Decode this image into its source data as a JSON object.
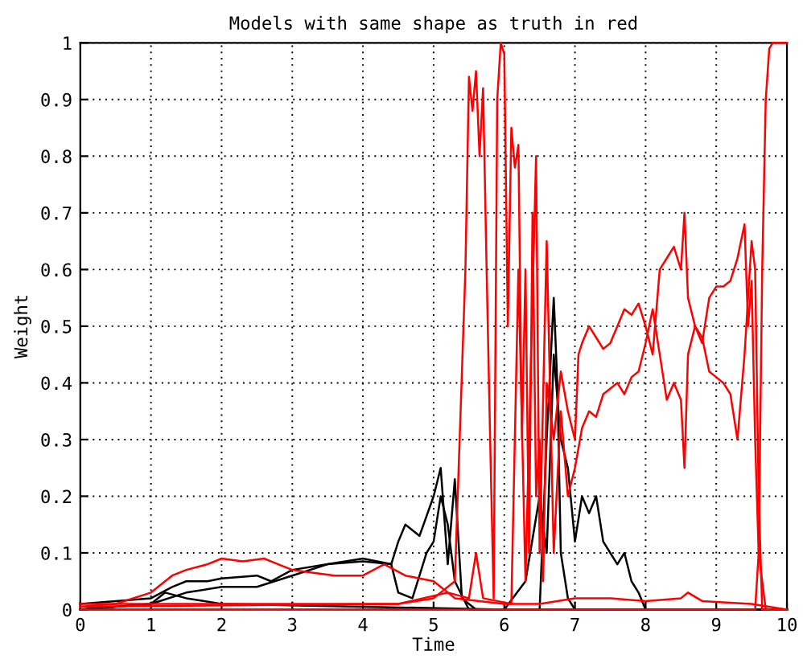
{
  "chart_data": {
    "type": "line",
    "title": "Models with same shape as truth in red",
    "xlabel": "Time",
    "ylabel": "Weight",
    "xlim": [
      0,
      10
    ],
    "ylim": [
      0,
      1
    ],
    "xticks": [
      0,
      1,
      2,
      3,
      4,
      5,
      6,
      7,
      8,
      9,
      10
    ],
    "yticks": [
      0,
      0.1,
      0.2,
      0.3,
      0.4,
      0.5,
      0.6,
      0.7,
      0.8,
      0.9,
      1
    ],
    "grid": true,
    "series": [
      {
        "color": "#000000",
        "x": [
          0,
          0.5,
          1.0,
          1.3,
          1.5,
          1.8,
          2.0,
          2.5,
          2.7,
          3.0,
          3.5,
          4.0,
          4.4,
          4.5,
          4.6,
          4.8,
          5.0,
          5.1,
          5.2,
          5.3,
          5.4,
          5.6,
          10
        ],
        "values": [
          0.01,
          0.015,
          0.02,
          0.04,
          0.05,
          0.05,
          0.055,
          0.06,
          0.05,
          0.07,
          0.08,
          0.09,
          0.08,
          0.12,
          0.15,
          0.13,
          0.2,
          0.25,
          0.08,
          0.23,
          0.02,
          0.0,
          0.0
        ]
      },
      {
        "color": "#000000",
        "x": [
          0,
          1.0,
          1.5,
          2.0,
          2.5,
          3.0,
          3.5,
          4.0,
          4.4,
          4.5,
          4.7,
          4.9,
          5.0,
          5.1,
          5.2,
          5.3,
          5.5,
          6.5,
          6.6,
          6.7,
          6.75,
          6.8,
          6.9,
          7.0,
          10
        ],
        "values": [
          0.0,
          0.01,
          0.03,
          0.04,
          0.04,
          0.06,
          0.08,
          0.085,
          0.08,
          0.03,
          0.02,
          0.1,
          0.12,
          0.2,
          0.15,
          0.05,
          0.0,
          0.0,
          0.3,
          0.55,
          0.4,
          0.1,
          0.02,
          0.0,
          0.0
        ]
      },
      {
        "color": "#000000",
        "x": [
          0,
          1,
          1.2,
          1.5,
          2,
          6.0,
          6.3,
          6.5,
          6.6,
          6.7,
          6.8,
          6.9,
          7.0,
          7.1,
          7.2,
          7.3,
          7.4,
          7.5,
          7.6,
          7.7,
          7.8,
          7.9,
          8.0,
          10
        ],
        "values": [
          0.0,
          0.01,
          0.03,
          0.02,
          0.01,
          0.0,
          0.05,
          0.2,
          0.1,
          0.45,
          0.3,
          0.25,
          0.12,
          0.2,
          0.17,
          0.2,
          0.12,
          0.1,
          0.08,
          0.1,
          0.05,
          0.03,
          0.0,
          0.0
        ]
      },
      {
        "color": "#ff0000",
        "x": [
          0,
          0.5,
          1.0,
          1.3,
          1.5,
          1.8,
          2.0,
          2.3,
          2.6,
          2.8,
          3.0,
          3.3,
          3.6,
          4.0,
          4.3,
          4.6,
          5.0,
          5.3,
          6.0,
          6.5,
          7.0,
          7.5,
          8.0,
          8.5,
          8.6,
          8.8,
          9.5,
          10
        ],
        "values": [
          0.005,
          0.01,
          0.03,
          0.06,
          0.07,
          0.08,
          0.09,
          0.085,
          0.09,
          0.08,
          0.07,
          0.065,
          0.06,
          0.06,
          0.08,
          0.06,
          0.05,
          0.02,
          0.01,
          0.01,
          0.02,
          0.02,
          0.015,
          0.02,
          0.03,
          0.015,
          0.01,
          0.0
        ]
      },
      {
        "color": "#ff0000",
        "x": [
          0,
          4.5,
          5.2,
          5.5,
          5.6,
          5.7,
          6.1,
          6.2,
          6.3,
          6.45,
          6.5,
          6.6,
          6.7,
          6.8,
          6.9,
          7.0,
          7.1,
          7.2,
          7.3,
          7.4,
          7.5,
          7.6,
          7.7,
          7.8,
          7.9,
          8.0,
          8.1,
          8.2,
          8.3,
          8.4,
          8.5,
          8.55,
          8.6,
          8.7,
          8.8,
          8.9,
          9.0,
          9.1,
          9.2,
          9.3,
          9.4,
          9.5,
          9.55,
          9.6,
          9.65,
          10
        ],
        "values": [
          0.005,
          0.01,
          0.03,
          0.02,
          0.1,
          0.02,
          0.01,
          0.6,
          0.05,
          0.8,
          0.1,
          0.65,
          0.1,
          0.35,
          0.2,
          0.25,
          0.32,
          0.35,
          0.34,
          0.38,
          0.39,
          0.4,
          0.38,
          0.41,
          0.42,
          0.47,
          0.53,
          0.45,
          0.37,
          0.4,
          0.37,
          0.25,
          0.45,
          0.5,
          0.48,
          0.42,
          0.41,
          0.4,
          0.38,
          0.3,
          0.45,
          0.65,
          0.6,
          0.2,
          0.0,
          0.0
        ]
      },
      {
        "color": "#ff0000",
        "x": [
          0,
          0.5,
          1,
          4.5,
          5.0,
          5.3,
          5.45,
          5.5,
          5.55,
          5.6,
          5.65,
          5.7,
          5.75,
          5.8,
          5.85,
          5.9,
          5.95,
          6.0,
          6.05,
          6.1,
          6.15,
          6.2,
          6.25,
          6.3,
          6.35,
          6.4,
          6.45,
          6.5,
          6.55,
          6.6,
          6.7,
          6.8,
          6.9,
          7.0,
          7.05,
          7.1,
          7.2,
          7.3,
          7.4,
          7.5,
          7.6,
          7.7,
          7.8,
          7.9,
          8.0,
          8.1,
          8.2,
          8.3,
          8.4,
          8.5,
          8.55,
          8.6,
          8.7,
          8.8,
          8.9,
          9.0,
          9.1,
          9.2,
          9.3,
          9.4,
          9.45,
          9.5,
          9.55,
          9.6,
          9.7,
          10
        ],
        "values": [
          0.01,
          0.01,
          0.01,
          0.01,
          0.02,
          0.05,
          0.6,
          0.94,
          0.88,
          0.95,
          0.8,
          0.92,
          0.6,
          0.3,
          0.02,
          0.9,
          1.0,
          0.98,
          0.5,
          0.85,
          0.78,
          0.82,
          0.3,
          0.6,
          0.1,
          0.7,
          0.2,
          0.3,
          0.05,
          0.4,
          0.3,
          0.42,
          0.35,
          0.3,
          0.45,
          0.47,
          0.5,
          0.48,
          0.46,
          0.47,
          0.5,
          0.53,
          0.52,
          0.54,
          0.5,
          0.45,
          0.6,
          0.62,
          0.64,
          0.6,
          0.7,
          0.55,
          0.5,
          0.47,
          0.55,
          0.57,
          0.57,
          0.58,
          0.62,
          0.68,
          0.5,
          0.58,
          0.3,
          0.1,
          0.0,
          0.0
        ]
      },
      {
        "color": "#ff0000",
        "x": [
          0,
          9.55,
          9.6,
          9.65,
          9.7,
          9.75,
          9.8,
          10
        ],
        "values": [
          0.0,
          0.0,
          0.1,
          0.6,
          0.9,
          0.99,
          1.0,
          1.0
        ]
      }
    ]
  }
}
